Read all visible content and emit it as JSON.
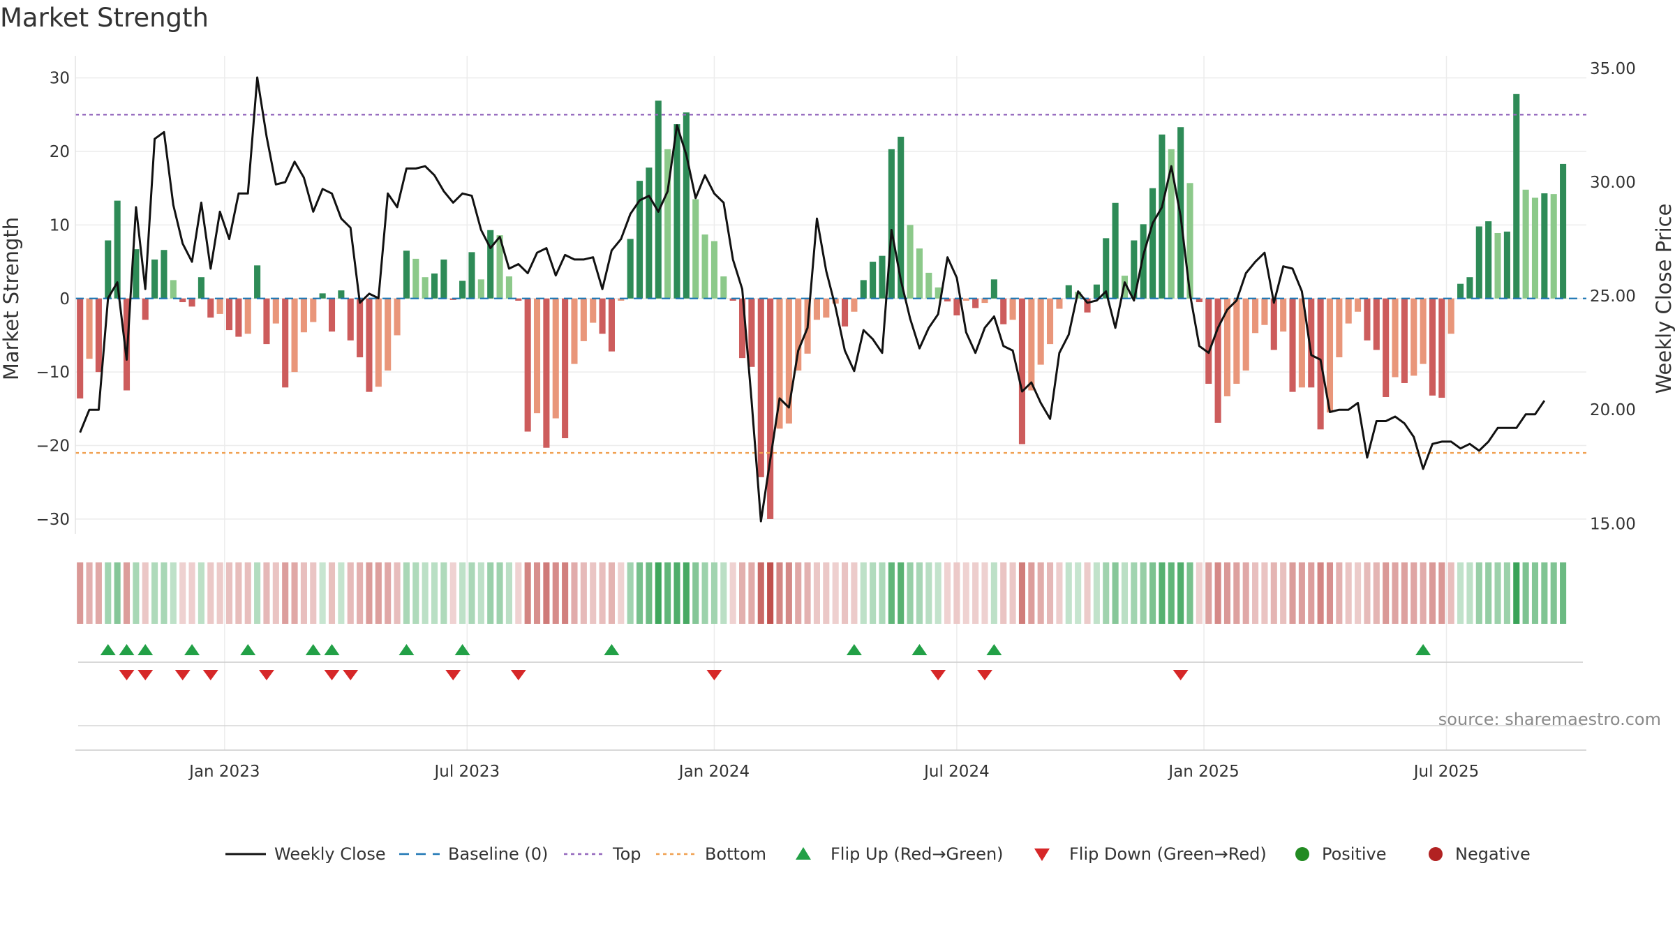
{
  "chart_data": {
    "type": "bar+line",
    "title": "Market Strength",
    "ylabel_left": "Market Strength",
    "ylabel_right": "Weekly Close Price",
    "source": "source: sharemaestro.com",
    "left_axis": {
      "ylim": [
        -32,
        33
      ],
      "ticks": [
        30,
        20,
        10,
        0,
        -10,
        -20,
        -30
      ],
      "tick_labels": [
        "30",
        "20",
        "10",
        "0",
        "−10",
        "−20",
        "−30"
      ]
    },
    "right_axis": {
      "ylim": [
        14.55,
        35.55
      ],
      "ticks": [
        35,
        30,
        25,
        20,
        15
      ],
      "tick_labels": [
        "35.00",
        "30.00",
        "25.00",
        "20.00",
        "15.00"
      ]
    },
    "x_axis": {
      "range": [
        -0.5,
        161.5
      ],
      "ticks": [
        15.5,
        41.5,
        68,
        94,
        120.5,
        146.5
      ],
      "tick_labels": [
        "Jan 2023",
        "Jul 2023",
        "Jan 2024",
        "Jul 2024",
        "Jan 2025",
        "Jul 2025"
      ]
    },
    "baseline": 0,
    "top_line": 25,
    "bottom_line": -21,
    "strength_values": [
      -13.6,
      -8.2,
      -10,
      7.9,
      13.3,
      -12.5,
      6.7,
      -2.9,
      5.3,
      6.6,
      2.5,
      -0.5,
      -1.1,
      2.9,
      -2.6,
      -2.1,
      -4.3,
      -5.2,
      -4.8,
      4.5,
      -6.2,
      -3.4,
      -12.1,
      -10,
      -4.6,
      -3.2,
      0.7,
      -4.5,
      1.1,
      -5.7,
      -8,
      -12.7,
      -12,
      -9.8,
      -5,
      6.5,
      5.4,
      2.9,
      3.4,
      5.3,
      -0.2,
      2.4,
      6.3,
      2.6,
      9.3,
      8.6,
      3,
      -0.3,
      -18.1,
      -15.6,
      -20.3,
      -16.3,
      -19,
      -8.9,
      -5.8,
      -3.3,
      -4.8,
      -7.2,
      -0.3,
      8.1,
      16,
      17.8,
      26.9,
      20.3,
      23.7,
      25.3,
      13.5,
      8.7,
      7.8,
      3,
      -0.3,
      -8.1,
      -9.3,
      -24.3,
      -30,
      -17.7,
      -17,
      -9.8,
      -7.5,
      -2.9,
      -2.6,
      -0.7,
      -3.8,
      -1.8,
      2.5,
      5,
      5.8,
      20.3,
      22,
      10,
      6.8,
      3.5,
      1.5,
      -0.4,
      -2.3,
      -0.3,
      -1.3,
      -0.6,
      2.6,
      -3.5,
      -2.9,
      -19.8,
      -12.5,
      -9,
      -6.2,
      -1.4,
      1.8,
      0.9,
      -1.9,
      1.9,
      8.2,
      13,
      3.1,
      7.9,
      10.1,
      15,
      22.3,
      20.3,
      23.3,
      15.7,
      -0.5,
      -11.6,
      -16.9,
      -13.3,
      -11.6,
      -9.8,
      -4.7,
      -3.6,
      -7,
      -4.5,
      -12.7,
      -12.1,
      -12.1,
      -17.8,
      -15.5,
      -8,
      -3.4,
      -1.8,
      -5.7,
      -7,
      -13.4,
      -10.7,
      -11.5,
      -10.5,
      -8.9,
      -13.2,
      -13.5,
      -4.8,
      2,
      2.9,
      9.8,
      10.5,
      8.9,
      9.1,
      27.8,
      14.8,
      13.7,
      14.3,
      14.2,
      18.3
    ],
    "weekly_close": [
      19.0,
      20.0,
      20.0,
      24.9,
      25.6,
      22.2,
      28.9,
      25.3,
      31.9,
      32.2,
      29.0,
      27.3,
      26.5,
      29.1,
      26.2,
      28.7,
      27.5,
      29.5,
      29.5,
      34.6,
      32.0,
      29.9,
      30.0,
      30.9,
      30.2,
      28.7,
      29.7,
      29.5,
      28.4,
      28.0,
      24.7,
      25.1,
      24.9,
      29.5,
      28.9,
      30.6,
      30.6,
      30.7,
      30.3,
      29.6,
      29.1,
      29.5,
      29.4,
      27.9,
      27.1,
      27.6,
      26.2,
      26.4,
      26.0,
      26.9,
      27.1,
      25.9,
      26.8,
      26.6,
      26.6,
      26.7,
      25.3,
      27.0,
      27.5,
      28.6,
      29.2,
      29.4,
      28.7,
      29.6,
      32.5,
      31.2,
      29.3,
      30.3,
      29.5,
      29.1,
      26.6,
      25.3,
      20.4,
      15.1,
      17.8,
      20.5,
      20.1,
      22.6,
      23.6,
      28.4,
      26.1,
      24.5,
      22.6,
      21.7,
      23.5,
      23.1,
      22.5,
      27.9,
      25.7,
      24.0,
      22.7,
      23.6,
      24.2,
      26.7,
      25.8,
      23.4,
      22.5,
      23.6,
      24.1,
      22.8,
      22.6,
      20.8,
      21.2,
      20.3,
      19.6,
      22.5,
      23.3,
      25.2,
      24.7,
      24.8,
      25.2,
      23.6,
      25.6,
      24.8,
      26.8,
      28.2,
      28.9,
      30.7,
      28.5,
      25.1,
      22.8,
      22.5,
      23.6,
      24.4,
      24.8,
      26.0,
      26.5,
      26.9,
      24.7,
      26.3,
      26.2,
      25.2,
      22.4,
      22.2,
      19.9,
      20.0,
      20.0,
      20.3,
      17.9,
      19.5,
      19.5,
      19.7,
      19.4,
      18.8,
      17.4,
      18.5,
      18.6,
      18.6,
      18.3,
      18.5,
      18.2,
      18.6,
      19.2,
      19.2,
      19.2,
      19.8,
      19.8,
      20.4
    ],
    "flip_up_x": [
      3,
      5,
      7,
      12,
      18,
      25,
      27,
      35,
      41,
      57,
      83,
      90,
      98,
      144
    ],
    "flip_down_x": [
      5,
      7,
      11,
      14,
      20,
      27,
      29,
      40,
      47,
      68,
      92,
      97,
      118
    ],
    "legend": [
      {
        "label": "Weekly Close",
        "marker": "line"
      },
      {
        "label": "Baseline (0)",
        "marker": "dash"
      },
      {
        "label": "Top",
        "marker": "dot"
      },
      {
        "label": "Bottom",
        "marker": "dot"
      },
      {
        "label": "Flip Up (Red→Green)",
        "marker": "triangle-up"
      },
      {
        "label": "Flip Down (Green→Red)",
        "marker": "triangle-down"
      },
      {
        "label": "Positive",
        "marker": "circle"
      },
      {
        "label": "Negative",
        "marker": "circle"
      }
    ],
    "colors": {
      "pos_strong": "#2e8b57",
      "pos_weak": "#8cc98a",
      "neg_strong": "#cd5c5c",
      "neg_weak": "#e9967a",
      "price_line": "#111111",
      "baseline": "#1f77b4",
      "top": "#9467bd",
      "bottom": "#f0a050",
      "flip_up": "#22a046",
      "flip_down": "#d62728",
      "positive": "#228b22",
      "negative": "#b22222"
    }
  }
}
